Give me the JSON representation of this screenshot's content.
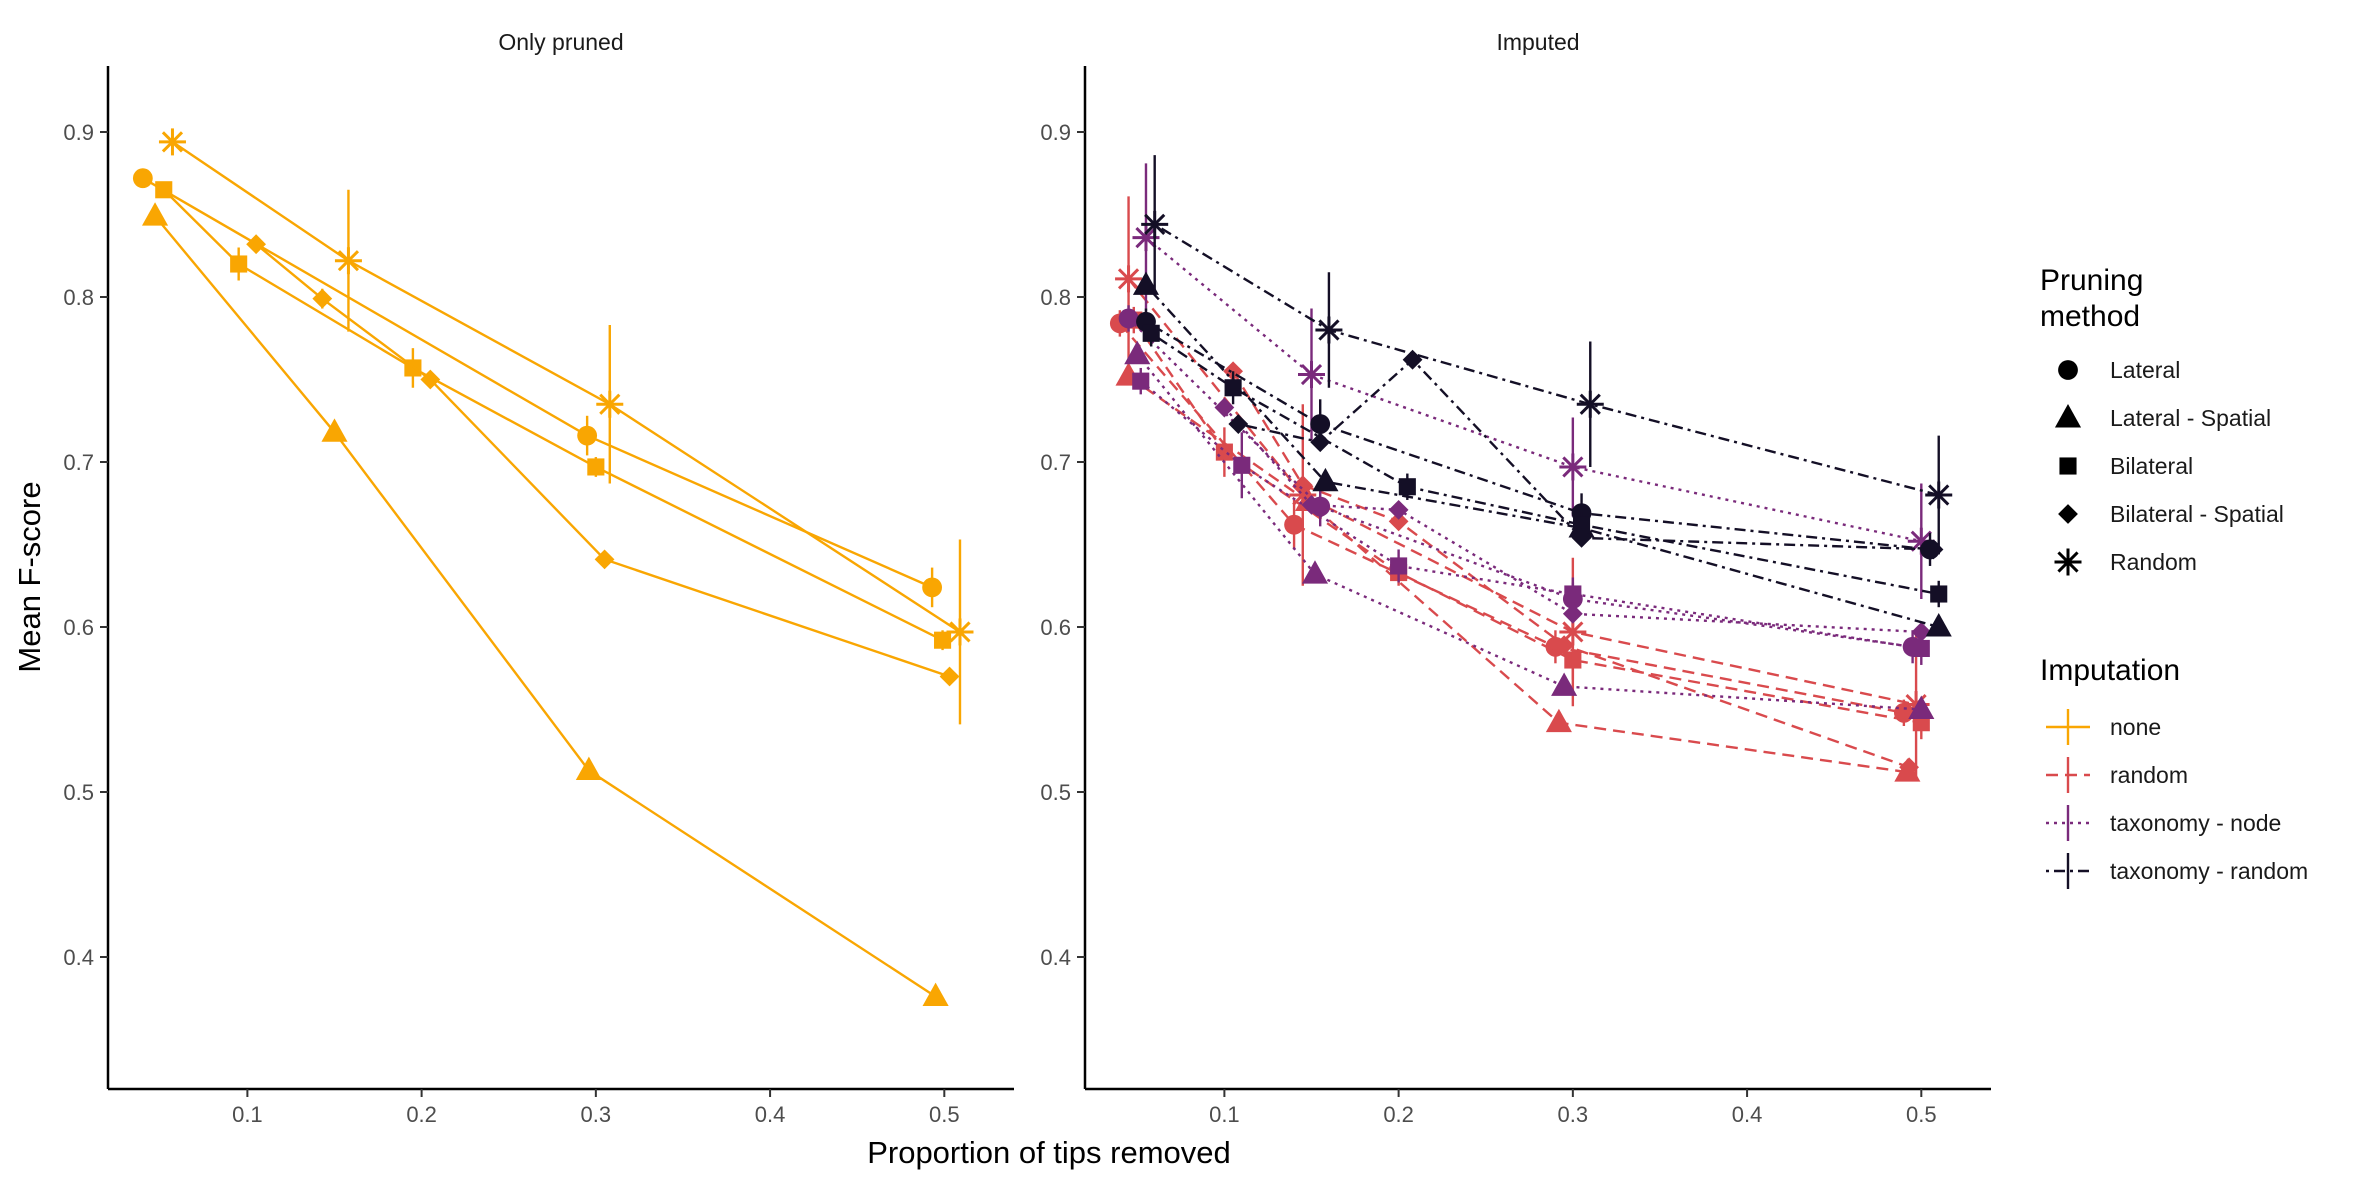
{
  "chart_data": {
    "type": "line",
    "xlabel": "Proportion of tips removed",
    "ylabel": "Mean F-score",
    "xlim": [
      0.02,
      0.54
    ],
    "ylim": [
      0.32,
      0.94
    ],
    "x_ticks": [
      "0.1",
      "0.2",
      "0.3",
      "0.4",
      "0.5"
    ],
    "y_ticks": [
      "0.4",
      "0.5",
      "0.6",
      "0.7",
      "0.8",
      "0.9"
    ],
    "grid": false,
    "panels": [
      {
        "title": "Only pruned",
        "series": [
          {
            "imputation": "none",
            "method": "Lateral",
            "x": [
              0.04,
              0.295,
              0.493
            ],
            "y": [
              0.872,
              0.716,
              0.624
            ],
            "err": [
              0.004,
              0.012,
              0.012
            ]
          },
          {
            "imputation": "none",
            "method": "Lateral - Spatial",
            "x": [
              0.047,
              0.15,
              0.296,
              0.495
            ],
            "y": [
              0.849,
              0.718,
              0.513,
              0.376
            ],
            "err": [
              0,
              0,
              0,
              0
            ]
          },
          {
            "imputation": "none",
            "method": "Bilateral",
            "x": [
              0.052,
              0.095,
              0.195,
              0.3,
              0.499
            ],
            "y": [
              0.865,
              0.82,
              0.757,
              0.697,
              0.592
            ],
            "err": [
              0.004,
              0.01,
              0.012,
              0.006,
              0.006
            ]
          },
          {
            "imputation": "none",
            "method": "Bilateral - Spatial",
            "x": [
              0.105,
              0.143,
              0.205,
              0.305,
              0.503
            ],
            "y": [
              0.832,
              0.799,
              0.75,
              0.641,
              0.57
            ],
            "err": [
              0,
              0.006,
              0,
              0,
              0
            ]
          },
          {
            "imputation": "none",
            "method": "Random",
            "x": [
              0.057,
              0.158,
              0.308,
              0.509
            ],
            "y": [
              0.894,
              0.822,
              0.735,
              0.597
            ],
            "err": [
              0.005,
              0.043,
              0.048,
              0.056
            ]
          }
        ]
      },
      {
        "title": "Imputed",
        "series": [
          {
            "imputation": "random",
            "method": "Lateral",
            "x": [
              0.04,
              0.14,
              0.29,
              0.49
            ],
            "y": [
              0.784,
              0.662,
              0.588,
              0.548
            ],
            "err": [
              0.008,
              0.015,
              0.01,
              0.008
            ]
          },
          {
            "imputation": "random",
            "method": "Lateral - Spatial",
            "x": [
              0.045,
              0.148,
              0.292,
              0.492
            ],
            "y": [
              0.752,
              0.676,
              0.542,
              0.512
            ],
            "err": [
              0,
              0,
              0,
              0
            ]
          },
          {
            "imputation": "random",
            "method": "Bilateral",
            "x": [
              0.048,
              0.1,
              0.2,
              0.3,
              0.5
            ],
            "y": [
              0.786,
              0.706,
              0.633,
              0.58,
              0.542
            ],
            "err": [
              0.008,
              0.015,
              0.008,
              0.012,
              0.01
            ]
          },
          {
            "imputation": "random",
            "method": "Bilateral - Spatial",
            "x": [
              0.105,
              0.145,
              0.2,
              0.295,
              0.493
            ],
            "y": [
              0.755,
              0.686,
              0.664,
              0.589,
              0.515
            ],
            "err": [
              0,
              0,
              0,
              0,
              0
            ]
          },
          {
            "imputation": "random",
            "method": "Random",
            "x": [
              0.045,
              0.145,
              0.3,
              0.497
            ],
            "y": [
              0.811,
              0.68,
              0.597,
              0.553
            ],
            "err": [
              0.05,
              0.055,
              0.045,
              0.045
            ]
          },
          {
            "imputation": "taxonomy - node",
            "method": "Lateral",
            "x": [
              0.045,
              0.155,
              0.3,
              0.495
            ],
            "y": [
              0.787,
              0.673,
              0.617,
              0.588
            ],
            "err": [
              0.008,
              0.012,
              0.01,
              0.01
            ]
          },
          {
            "imputation": "taxonomy - node",
            "method": "Lateral - Spatial",
            "x": [
              0.05,
              0.152,
              0.295,
              0.5
            ],
            "y": [
              0.765,
              0.632,
              0.564,
              0.55
            ],
            "err": [
              0,
              0,
              0,
              0
            ]
          },
          {
            "imputation": "taxonomy - node",
            "method": "Bilateral",
            "x": [
              0.052,
              0.11,
              0.2,
              0.3,
              0.5
            ],
            "y": [
              0.749,
              0.698,
              0.637,
              0.62,
              0.587
            ],
            "err": [
              0.008,
              0.02,
              0.01,
              0.01,
              0.01
            ]
          },
          {
            "imputation": "taxonomy - node",
            "method": "Bilateral - Spatial",
            "x": [
              0.1,
              0.15,
              0.2,
              0.3,
              0.5
            ],
            "y": [
              0.733,
              0.674,
              0.671,
              0.608,
              0.597
            ],
            "err": [
              0,
              0,
              0,
              0,
              0
            ]
          },
          {
            "imputation": "taxonomy - node",
            "method": "Random",
            "x": [
              0.055,
              0.15,
              0.3,
              0.5
            ],
            "y": [
              0.836,
              0.753,
              0.697,
              0.652
            ],
            "err": [
              0.045,
              0.04,
              0.03,
              0.035
            ]
          },
          {
            "imputation": "taxonomy - random",
            "method": "Lateral",
            "x": [
              0.055,
              0.155,
              0.305,
              0.505
            ],
            "y": [
              0.785,
              0.723,
              0.669,
              0.647
            ],
            "err": [
              0.008,
              0.015,
              0.012,
              0.01
            ]
          },
          {
            "imputation": "taxonomy - random",
            "method": "Lateral - Spatial",
            "x": [
              0.055,
              0.158,
              0.305,
              0.51
            ],
            "y": [
              0.807,
              0.688,
              0.66,
              0.6
            ],
            "err": [
              0,
              0,
              0,
              0
            ]
          },
          {
            "imputation": "taxonomy - random",
            "method": "Bilateral",
            "x": [
              0.058,
              0.105,
              0.205,
              0.305,
              0.51
            ],
            "y": [
              0.778,
              0.745,
              0.685,
              0.662,
              0.62
            ],
            "err": [
              0.008,
              0.01,
              0.008,
              0.008,
              0.008
            ]
          },
          {
            "imputation": "taxonomy - random",
            "method": "Bilateral - Spatial",
            "x": [
              0.108,
              0.155,
              0.208,
              0.305,
              0.507
            ],
            "y": [
              0.723,
              0.712,
              0.762,
              0.654,
              0.647
            ],
            "err": [
              0,
              0,
              0,
              0,
              0
            ]
          },
          {
            "imputation": "taxonomy - random",
            "method": "Random",
            "x": [
              0.06,
              0.16,
              0.31,
              0.51
            ],
            "y": [
              0.844,
              0.78,
              0.735,
              0.68
            ],
            "err": [
              0.042,
              0.035,
              0.038,
              0.036
            ]
          }
        ]
      }
    ],
    "legend_shape": {
      "title": "Pruning\nmethod",
      "entries": [
        {
          "label": "Lateral",
          "shape": "circle"
        },
        {
          "label": "Lateral - Spatial",
          "shape": "triangle"
        },
        {
          "label": "Bilateral",
          "shape": "square"
        },
        {
          "label": "Bilateral - Spatial",
          "shape": "diamond"
        },
        {
          "label": "Random",
          "shape": "asterisk"
        }
      ]
    },
    "legend_color": {
      "title": "Imputation",
      "entries": [
        {
          "label": "none",
          "color": "#F9A602",
          "dash": "solid"
        },
        {
          "label": "random",
          "color": "#D94A4D",
          "dash": "dashed"
        },
        {
          "label": "taxonomy - node",
          "color": "#7A2A7B",
          "dash": "dotted"
        },
        {
          "label": "taxonomy - random",
          "color": "#140F26",
          "dash": "dotdash"
        }
      ]
    },
    "legend_placement": "right"
  }
}
